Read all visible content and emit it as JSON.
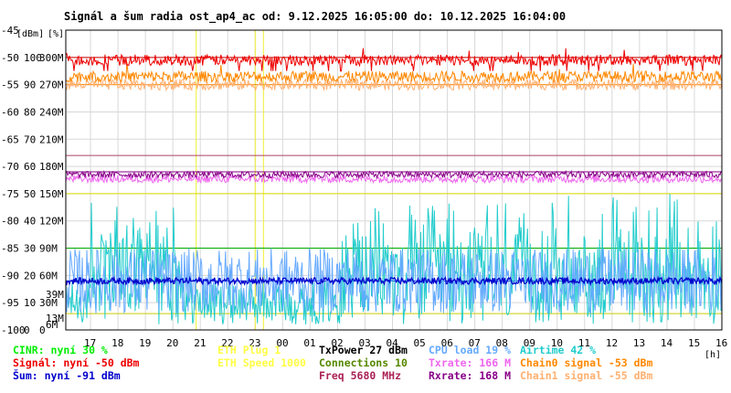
{
  "chart_data": {
    "type": "line",
    "title": "Signál a šum radia ost_ap4_ac od: 9.12.2025 16:05:00 do: 10.12.2025 16:04:00",
    "y_units": [
      "[dBm]",
      "[%]"
    ],
    "x_unit": "[h]",
    "x_ticks": [
      "17",
      "18",
      "19",
      "20",
      "21",
      "22",
      "23",
      "00",
      "01",
      "02",
      "03",
      "04",
      "05",
      "06",
      "07",
      "08",
      "09",
      "10",
      "11",
      "12",
      "13",
      "14",
      "15",
      "16"
    ],
    "x_range_hours": [
      16.1,
      40.0
    ],
    "y_dbm_ticks": [
      "-45",
      "-50",
      "-55",
      "-60",
      "-65",
      "-70",
      "-75",
      "-80",
      "-85",
      "-90",
      "-95",
      "-100"
    ],
    "y_dbm_range": [
      -100,
      -45
    ],
    "y_pct_ticks": [
      "100",
      "90",
      "80",
      "70",
      "60",
      "50",
      "40",
      "30",
      "20",
      "10",
      "0"
    ],
    "y_rate_ticks": [
      "300M",
      "270M",
      "240M",
      "210M",
      "180M",
      "150M",
      "120M",
      "90M",
      "60M",
      "30M",
      "0"
    ],
    "y_rate_inner_ticks": [
      "39M",
      "13M",
      "6M"
    ],
    "y_rate_inner_values_M": [
      39,
      13,
      6
    ],
    "y_rate_inner_colors": [
      "#ee88ee",
      "#ee88ee",
      "#ee88ee"
    ],
    "grid": true,
    "reference_lines": [
      {
        "value_dbm": -50,
        "color": "#cc0000"
      },
      {
        "value_dbm": -55,
        "color": "#ff8800"
      },
      {
        "value_dbm": -68,
        "color": "#aa4466"
      },
      {
        "value_dbm": -71,
        "color": "#880088"
      },
      {
        "value_dbm": -75,
        "color": "#dddd00"
      },
      {
        "value_dbm": -85,
        "color": "#00aa00"
      },
      {
        "value_dbm": -91,
        "color": "#0000cc"
      },
      {
        "value_dbm": -97,
        "color": "#cccc00"
      }
    ],
    "eth_events_hours": [
      20.85,
      23.0,
      23.3
    ],
    "series": [
      {
        "name": "Signál",
        "color": "#ee0000",
        "values_dbm_approx": {
          "base": -50.5,
          "spread": 1.0,
          "dip": -52.5
        }
      },
      {
        "name": "Chain0 signal",
        "color": "#ff8800",
        "values_dbm_approx": {
          "base": -53.5,
          "spread": 1.0
        }
      },
      {
        "name": "Chain1 signal",
        "color": "#ffb070",
        "values_dbm_approx": {
          "base": -55.0,
          "spread": 1.0
        }
      },
      {
        "name": "Rxrate",
        "color": "#880088",
        "values_dbm_approx": {
          "base": -71.5,
          "spread": 0.6
        }
      },
      {
        "name": "Txrate",
        "color": "#ee66ee",
        "values_dbm_approx": {
          "base": -72.3,
          "spread": 0.7
        }
      },
      {
        "name": "Airtime",
        "color": "#22cccc",
        "values_dbm_approx": {
          "low": -99.0,
          "high": -80.0
        }
      },
      {
        "name": "CPU load",
        "color": "#66aaff",
        "values_dbm_approx": {
          "low": -97.0,
          "high": -85.0
        }
      },
      {
        "name": "Šum",
        "color": "#0000cc",
        "values_dbm_approx": {
          "base": -91.0,
          "spread": 0.6
        }
      }
    ]
  },
  "legend": [
    {
      "text": "CINR: nyní 30 %",
      "color": "#00ee00"
    },
    {
      "text": "Signál: nyní -50 dBm",
      "color": "#ee0000"
    },
    {
      "text": "Šum: nyní -91 dBm",
      "color": "#0000cc"
    },
    {
      "text": "ETH Plug 1",
      "color": "#ffff44"
    },
    {
      "text": "ETH Speed 1000",
      "color": "#ffff44"
    },
    {
      "text": "TxPower 27 dBm",
      "color": "#000000"
    },
    {
      "text": "Connections 10",
      "color": "#558800"
    },
    {
      "text": "Freq 5680 MHz",
      "color": "#aa2255"
    },
    {
      "text": "CPU load 19 %",
      "color": "#66aaff"
    },
    {
      "text": "Txrate: 166 M",
      "color": "#ee66ee"
    },
    {
      "text": "Rxrate: 168 M",
      "color": "#880088"
    },
    {
      "text": "Airtime 42 %",
      "color": "#22cccc"
    },
    {
      "text": "Chain0 signal -53 dBm",
      "color": "#ff8800"
    },
    {
      "text": "Chain1 signal -55 dBm",
      "color": "#ffb070"
    }
  ]
}
